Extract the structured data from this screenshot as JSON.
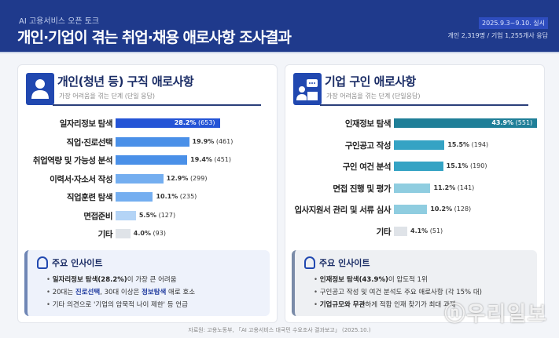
{
  "header": {
    "supertitle": "AI 고용서비스 오픈 토크",
    "title": "개인·기업이 겪는 취업·채용 애로사항 조사결과",
    "date": "2025.9.3~9.10. 실시",
    "respondents": "개인 2,319명 / 기업 1,255개사 응답"
  },
  "colors": {
    "header": "#1f3a8c",
    "left_bar_top": "#2454d6",
    "right_bar_top": "#1f7f98"
  },
  "chart_data": [
    {
      "type": "bar",
      "title": "개인(청년 등) 구직 애로사항",
      "subtitle": "가장 어려움을 겪는 단계 (단일 응답)",
      "categories": [
        "일자리정보 탐색",
        "직업·진로선택",
        "취업역량 및 가능성 분석",
        "이력서·자소서 작성",
        "직업훈련 탐색",
        "면접준비",
        "기타"
      ],
      "values": [
        28.2,
        19.9,
        19.4,
        12.9,
        10.1,
        5.5,
        4.0
      ],
      "counts": [
        "(653)",
        "(461)",
        "(451)",
        "(299)",
        "(235)",
        "(127)",
        "(93)"
      ],
      "colors": [
        "#2454d6",
        "#4a90e8",
        "#4a90e8",
        "#74aef0",
        "#74aef0",
        "#b4d4f6",
        "#dfe3e8"
      ]
    },
    {
      "type": "bar",
      "title": "기업 구인 애로사항",
      "subtitle": "가장 어려움을 겪는 단계 (단일응답)",
      "categories": [
        "인재정보 탐색",
        "구인공고 작성",
        "구인 여건 분석",
        "면접 진행 및 평가",
        "입사지원서 관리 및 서류 심사",
        "기타"
      ],
      "values": [
        43.9,
        15.5,
        15.1,
        11.2,
        10.2,
        4.1
      ],
      "counts": [
        "(551)",
        "(194)",
        "(190)",
        "(141)",
        "(128)",
        "(51)"
      ],
      "colors": [
        "#1f7f98",
        "#35a3c4",
        "#35a3c4",
        "#8fcde0",
        "#8fcde0",
        "#dfe3e8"
      ]
    }
  ],
  "insights_left": {
    "title": "주요 인사이트",
    "b1a": "일자리정보 탐색(28.2%)",
    "b1b": "이 가장 큰 어려움",
    "b2a": "20대는 ",
    "b2b": "진로선택",
    "b2c": ", 30대 이상은 ",
    "b2d": "정보탐색",
    "b2e": " 애로 호소",
    "b3": "기타 의견으로 '기업의 암묵적 나이 제한' 등 언급"
  },
  "insights_right": {
    "title": "주요 인사이트",
    "b1a": "인재정보 탐색(43.9%)",
    "b1b": "이 압도적 1위",
    "b2": "구인공고 작성 및 여건 분석도 주요 애로사항 (각 15% 대)",
    "b3a": "기업규모와 무관",
    "b3b": "하게 적합 인재 찾기가 최대 과제"
  },
  "source": "자료원: 고용노동부, 「AI 고용서비스 대국민 수요조사 결과보고」 (2025.10.)",
  "watermark": "ⓝ우리일보"
}
